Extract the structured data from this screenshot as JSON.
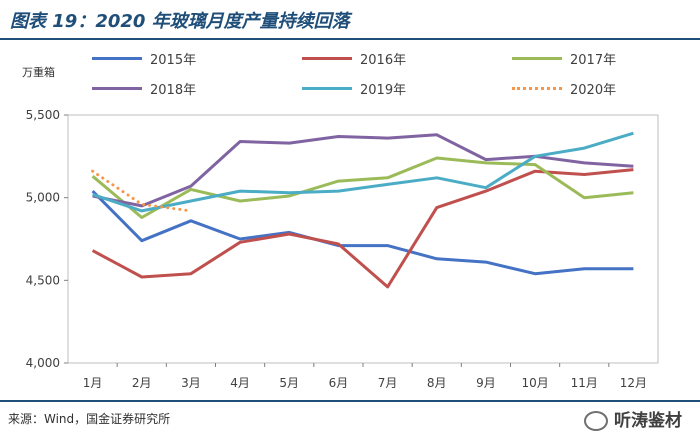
{
  "header": {
    "title": "图表 19：2020 年玻璃月度产量持续回落"
  },
  "footer": {
    "source": "来源：Wind，国金证券研究所",
    "watermark": "听涛鉴材"
  },
  "chart_data": {
    "type": "line",
    "title": "图表 19：2020 年玻璃月度产量持续回落",
    "ylabel": "万重箱",
    "xlabel": "",
    "ylim": [
      4000,
      5500
    ],
    "yticks": [
      4000,
      4500,
      5000,
      5500
    ],
    "ytick_labels": [
      "4,000",
      "4,500",
      "5,000",
      "5,500"
    ],
    "categories": [
      "1月",
      "2月",
      "3月",
      "4月",
      "5月",
      "6月",
      "7月",
      "8月",
      "9月",
      "10月",
      "11月",
      "12月"
    ],
    "legend_position": "top",
    "series": [
      {
        "name": "2015年",
        "color": "#4472c4",
        "dash": false,
        "values": [
          5040,
          4740,
          4860,
          4750,
          4790,
          4710,
          4710,
          4630,
          4610,
          4540,
          4570,
          4570
        ]
      },
      {
        "name": "2016年",
        "color": "#c0504d",
        "dash": false,
        "values": [
          4680,
          4520,
          4540,
          4730,
          4780,
          4720,
          4460,
          4940,
          5040,
          5160,
          5140,
          5170
        ]
      },
      {
        "name": "2017年",
        "color": "#9bbb59",
        "dash": false,
        "values": [
          5130,
          4880,
          5050,
          4980,
          5010,
          5100,
          5120,
          5240,
          5210,
          5200,
          5000,
          5030
        ]
      },
      {
        "name": "2018年",
        "color": "#8064a2",
        "dash": false,
        "values": [
          5010,
          4950,
          5070,
          5340,
          5330,
          5370,
          5360,
          5380,
          5230,
          5250,
          5210,
          5190
        ]
      },
      {
        "name": "2019年",
        "color": "#4bacc6",
        "dash": false,
        "values": [
          5020,
          4920,
          4980,
          5040,
          5030,
          5040,
          5080,
          5120,
          5060,
          5250,
          5300,
          5390
        ]
      },
      {
        "name": "2020年",
        "color": "#f79646",
        "dash": true,
        "values": [
          5160,
          4960,
          4920,
          null,
          null,
          null,
          null,
          null,
          null,
          null,
          null,
          null
        ]
      }
    ]
  }
}
